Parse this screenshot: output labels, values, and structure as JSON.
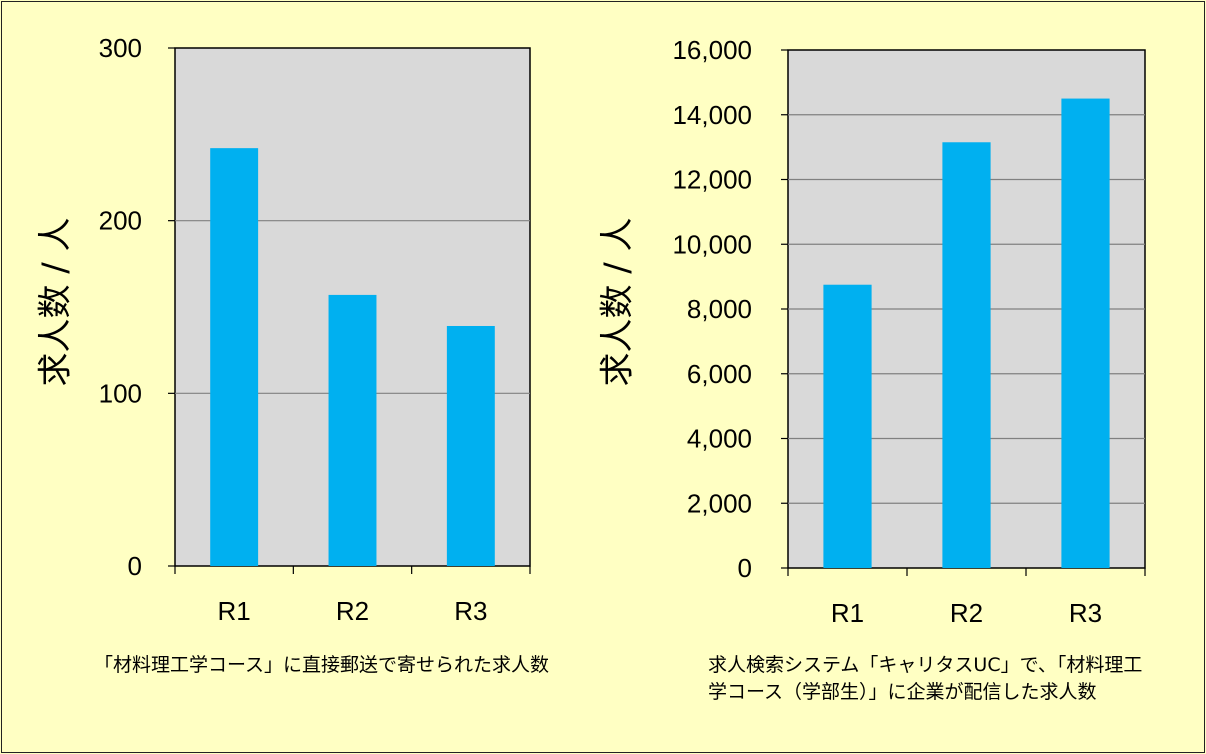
{
  "chart_data": [
    {
      "type": "bar",
      "categories": [
        "R1",
        "R2",
        "R3"
      ],
      "values": [
        242,
        157,
        139
      ],
      "ylabel": "求人数 / 人",
      "ylim": [
        0,
        300
      ],
      "yticks": [
        0,
        100,
        200,
        300
      ],
      "ytick_labels": [
        "0",
        "100",
        "200",
        "300"
      ],
      "grid": true,
      "caption": "「材料理工学コース」に直接郵送で寄せられた求人数",
      "bar_color": "#00b0f0"
    },
    {
      "type": "bar",
      "categories": [
        "R1",
        "R2",
        "R3"
      ],
      "values": [
        8750,
        13150,
        14500
      ],
      "ylabel": "求人数 / 人",
      "ylim": [
        0,
        16000
      ],
      "yticks": [
        0,
        2000,
        4000,
        6000,
        8000,
        10000,
        12000,
        14000,
        16000
      ],
      "ytick_labels": [
        "0",
        "2,000",
        "4,000",
        "6,000",
        "8,000",
        "10,000",
        "12,000",
        "14,000",
        "16,000"
      ],
      "grid": true,
      "caption": "求人検索システム「キャリタスUC」で、「材料理工学コース（学部生）」に企業が配信した求人数",
      "bar_color": "#00b0f0"
    }
  ],
  "colors": {
    "page_background": "#ffffc3",
    "plot_background": "#d9d9d9",
    "bar": "#00b0f0",
    "gridline": "#808080"
  }
}
